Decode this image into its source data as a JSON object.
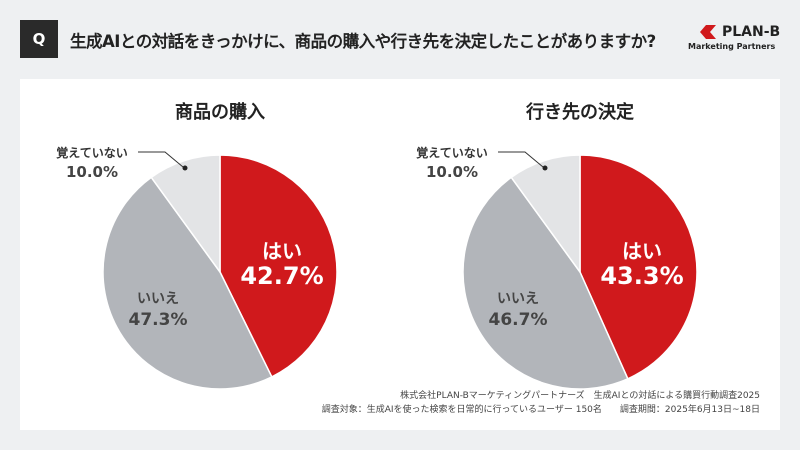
{
  "header": {
    "q_label": "Q",
    "question": "生成AIとの対話をきっかけに、商品の購入や行き先を決定したことがありますか?"
  },
  "logo": {
    "name": "PLAN-B",
    "sub": "Marketing Partners"
  },
  "chart_data": [
    {
      "type": "pie",
      "title": "商品の購入",
      "labels": [
        "はい",
        "いいえ",
        "覚えていない"
      ],
      "values": [
        42.7,
        47.3,
        10.0
      ],
      "colors": [
        "#d0191c",
        "#b2b5ba",
        "#e3e4e6"
      ]
    },
    {
      "type": "pie",
      "title": "行き先の決定",
      "labels": [
        "はい",
        "いいえ",
        "覚えていない"
      ],
      "values": [
        43.3,
        46.7,
        10.0
      ],
      "colors": [
        "#d0191c",
        "#b2b5ba",
        "#e3e4e6"
      ]
    }
  ],
  "footnote": {
    "line1": "株式会社PLAN-Bマーケティングパートナーズ　生成AIとの対話による購買行動調査2025",
    "line2": "調査対象：生成AIを使った検索を日常的に行っているユーザー 150名　　調査期間：2025年6月13日~18日"
  }
}
